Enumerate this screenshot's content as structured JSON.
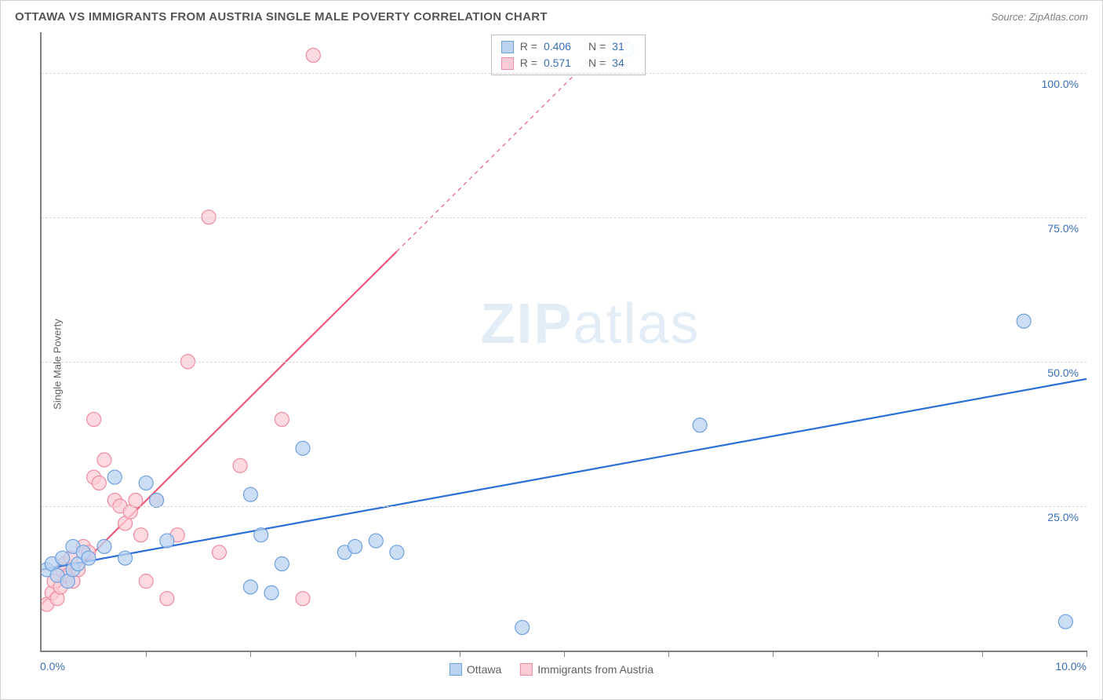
{
  "title": "OTTAWA VS IMMIGRANTS FROM AUSTRIA SINGLE MALE POVERTY CORRELATION CHART",
  "source": "Source: ZipAtlas.com",
  "y_axis_label": "Single Male Poverty",
  "watermark_a": "ZIP",
  "watermark_b": "atlas",
  "chart": {
    "type": "scatter",
    "background_color": "#ffffff",
    "grid_color": "#d8d8d8",
    "axis_color": "#808080",
    "xlim": [
      0,
      10
    ],
    "ylim": [
      0,
      107
    ],
    "x_ticks": [
      0,
      1,
      2,
      3,
      4,
      5,
      6,
      7,
      8,
      9,
      10
    ],
    "x_tick_labels": {
      "min": "0.0%",
      "max": "10.0%"
    },
    "y_gridlines": [
      25,
      50,
      75,
      100
    ],
    "y_tick_labels": [
      "25.0%",
      "50.0%",
      "75.0%",
      "100.0%"
    ],
    "marker_radius": 9,
    "marker_stroke_width": 1.2,
    "line_width": 2.2,
    "label_fontsize": 13,
    "tick_fontsize": 14,
    "tick_color": "#3b6fb6"
  },
  "series_a": {
    "name": "Ottawa",
    "fill_color": "#b9d3f0",
    "stroke_color": "#6fa0de",
    "line_color": "#2c6fd6",
    "R": "0.406",
    "N": "31",
    "trend": {
      "x1": 0,
      "y1": 14,
      "x2": 10,
      "y2": 47,
      "dashed_from_x": null
    },
    "points": [
      [
        0.05,
        14
      ],
      [
        0.1,
        15
      ],
      [
        0.15,
        13
      ],
      [
        0.2,
        16
      ],
      [
        0.25,
        12
      ],
      [
        0.3,
        14
      ],
      [
        0.3,
        18
      ],
      [
        0.35,
        15
      ],
      [
        0.4,
        17
      ],
      [
        0.45,
        16
      ],
      [
        0.6,
        18
      ],
      [
        0.7,
        30
      ],
      [
        0.8,
        16
      ],
      [
        1.0,
        29
      ],
      [
        1.1,
        26
      ],
      [
        1.2,
        19
      ],
      [
        2.0,
        27
      ],
      [
        2.0,
        11
      ],
      [
        2.1,
        20
      ],
      [
        2.2,
        10
      ],
      [
        2.3,
        15
      ],
      [
        2.5,
        35
      ],
      [
        2.9,
        17
      ],
      [
        3.0,
        18
      ],
      [
        3.2,
        19
      ],
      [
        3.4,
        17
      ],
      [
        4.6,
        4
      ],
      [
        5.6,
        104
      ],
      [
        6.3,
        39
      ],
      [
        9.4,
        57
      ],
      [
        9.8,
        5
      ]
    ]
  },
  "series_b": {
    "name": "Immigrants from Austria",
    "fill_color": "#fcccd6",
    "stroke_color": "#f08ba1",
    "line_color": "#ee5a7a",
    "R": "0.571",
    "N": "34",
    "trend": {
      "x1": 0,
      "y1": 8,
      "x2": 5.4,
      "y2": 105,
      "dashed_from_x": 3.4
    },
    "points": [
      [
        0.05,
        8
      ],
      [
        0.1,
        10
      ],
      [
        0.12,
        12
      ],
      [
        0.15,
        9
      ],
      [
        0.18,
        11
      ],
      [
        0.2,
        14
      ],
      [
        0.22,
        15
      ],
      [
        0.25,
        13
      ],
      [
        0.28,
        16
      ],
      [
        0.3,
        12
      ],
      [
        0.35,
        14
      ],
      [
        0.4,
        18
      ],
      [
        0.45,
        17
      ],
      [
        0.5,
        30
      ],
      [
        0.5,
        40
      ],
      [
        0.55,
        29
      ],
      [
        0.6,
        33
      ],
      [
        0.7,
        26
      ],
      [
        0.75,
        25
      ],
      [
        0.8,
        22
      ],
      [
        0.85,
        24
      ],
      [
        0.9,
        26
      ],
      [
        0.95,
        20
      ],
      [
        1.0,
        12
      ],
      [
        1.1,
        26
      ],
      [
        1.2,
        9
      ],
      [
        1.3,
        20
      ],
      [
        1.4,
        50
      ],
      [
        1.6,
        75
      ],
      [
        1.7,
        17
      ],
      [
        1.9,
        32
      ],
      [
        2.3,
        40
      ],
      [
        2.5,
        9
      ],
      [
        2.6,
        103
      ]
    ]
  },
  "stats_box": {
    "rows": [
      {
        "swatch_fill": "#b9d3f0",
        "swatch_stroke": "#6fa0de",
        "R": "0.406",
        "N": "31"
      },
      {
        "swatch_fill": "#fcccd6",
        "swatch_stroke": "#f08ba1",
        "R": "0.571",
        "N": "34"
      }
    ]
  },
  "legend": {
    "items": [
      {
        "swatch_fill": "#b9d3f0",
        "swatch_stroke": "#6fa0de",
        "label": "Ottawa"
      },
      {
        "swatch_fill": "#fcccd6",
        "swatch_stroke": "#f08ba1",
        "label": "Immigrants from Austria"
      }
    ]
  }
}
